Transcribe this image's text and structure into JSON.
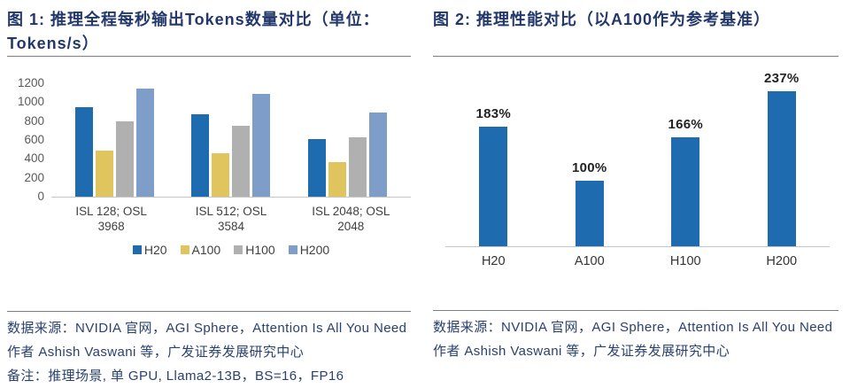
{
  "colors": {
    "title_navy": "#22386b",
    "footer_navy": "#2a4170",
    "h20_blue": "#1e6caf",
    "a100_yellow": "#e0c45e",
    "h100_gray": "#b0b0b0",
    "h200_lightblue": "#7f9dc9",
    "axis_gray": "#595959",
    "baseline_gray": "#c6c6c6",
    "rule_gray": "#7f7f7f"
  },
  "left_panel": {
    "title_lines": [
      "图 1: 推理全程每秒输出Tokens数量对比（单位：",
      "Tokens/s）"
    ],
    "source": "数据来源：NVIDIA 官网，AGI Sphere，Attention Is All You Need 作者 Ashish Vaswani 等，广发证券发展研究中心",
    "note": "备注：推理场景, 单 GPU, Llama2-13B，BS=16，FP16"
  },
  "right_panel": {
    "title_lines": [
      "图 2: 推理性能对比（以A100作为参考基准）"
    ],
    "source": "数据来源：NVIDIA 官网，AGI Sphere，Attention Is All You Need 作者 Ashish Vaswani 等，广发证券发展研究中心"
  },
  "chart_data": [
    {
      "type": "bar",
      "title": "图 1: 推理全程每秒输出Tokens数量对比（单位：Tokens/s）",
      "ylabel": "Tokens/s",
      "categories": [
        "ISL 128; OSL 3968",
        "ISL 512; OSL 3584",
        "ISL 2048; OSL 2048"
      ],
      "series": [
        {
          "name": "H20",
          "color": "#1e6caf",
          "values": [
            950,
            870,
            610
          ]
        },
        {
          "name": "A100",
          "color": "#e0c45e",
          "values": [
            490,
            460,
            370
          ]
        },
        {
          "name": "H100",
          "color": "#b0b0b0",
          "values": [
            800,
            750,
            630
          ]
        },
        {
          "name": "H200",
          "color": "#7f9dc9",
          "values": [
            1140,
            1090,
            890
          ]
        }
      ],
      "ylim": [
        0,
        1200
      ],
      "yticks": [
        0,
        200,
        400,
        600,
        800,
        1000,
        1200
      ],
      "grid": false,
      "legend_position": "bottom"
    },
    {
      "type": "bar",
      "title": "图 2: 推理性能对比（以A100作为参考基准）",
      "categories": [
        "H20",
        "A100",
        "H100",
        "H200"
      ],
      "values": [
        183,
        100,
        166,
        237
      ],
      "data_labels": [
        "183%",
        "100%",
        "166%",
        "237%"
      ],
      "bar_color": "#1e6caf",
      "ylim": [
        0,
        250
      ],
      "grid": false,
      "legend_position": "none"
    }
  ]
}
